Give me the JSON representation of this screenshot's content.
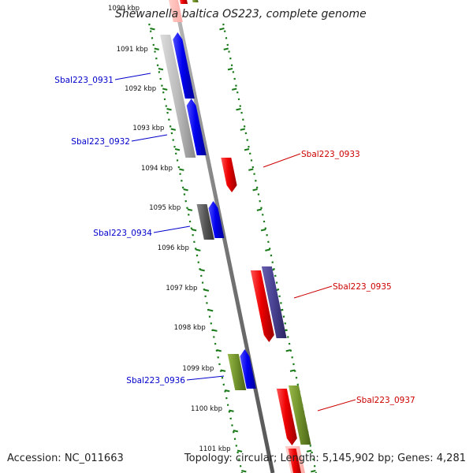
{
  "map": {
    "title": "Shewanella baltica OS223, complete genome",
    "footer_left": "Accession: NC_011663",
    "footer_right": "Topology: circular; Length: 5,145,902 bp; Genes: 4,281"
  },
  "colors": {
    "left_strand": "#0000cc",
    "right_strand": "#cc0000",
    "tick_dots": "#1a7a1a",
    "backbone": "#808080"
  },
  "scale": {
    "unit": "kbp",
    "ticks": [
      {
        "value": 1090,
        "label": "1090 kbp"
      },
      {
        "value": 1091,
        "label": "1091 kbp"
      },
      {
        "value": 1092,
        "label": "1092 kbp"
      },
      {
        "value": 1093,
        "label": "1093 kbp"
      },
      {
        "value": 1094,
        "label": "1094 kbp"
      },
      {
        "value": 1095,
        "label": "1095 kbp"
      },
      {
        "value": 1096,
        "label": "1096 kbp"
      },
      {
        "value": 1097,
        "label": "1097 kbp"
      },
      {
        "value": 1098,
        "label": "1098 kbp"
      },
      {
        "value": 1099,
        "label": "1099 kbp"
      },
      {
        "value": 1100,
        "label": "1100 kbp"
      },
      {
        "value": 1101,
        "label": "1101 kbp"
      }
    ]
  },
  "genes": [
    {
      "id": "Sbal223_0931",
      "label": "Sbal223_0931",
      "strand": "left"
    },
    {
      "id": "Sbal223_0932",
      "label": "Sbal223_0932",
      "strand": "left"
    },
    {
      "id": "Sbal223_0933",
      "label": "Sbal223_0933",
      "strand": "right"
    },
    {
      "id": "Sbal223_0934",
      "label": "Sbal223_0934",
      "strand": "left"
    },
    {
      "id": "Sbal223_0935",
      "label": "Sbal223_0935",
      "strand": "right"
    },
    {
      "id": "Sbal223_0936",
      "label": "Sbal223_0936",
      "strand": "left"
    },
    {
      "id": "Sbal223_0937",
      "label": "Sbal223_0937",
      "strand": "right"
    }
  ]
}
